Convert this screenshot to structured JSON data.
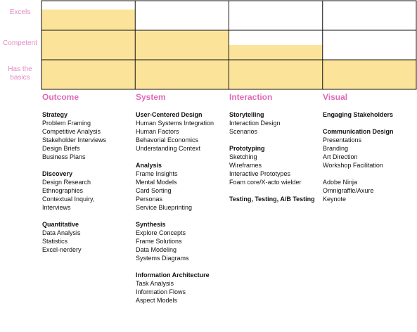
{
  "chart_data": {
    "type": "bar",
    "categories": [
      "Outcome",
      "System",
      "Interaction",
      "Visual"
    ],
    "levels": [
      "Has the basics",
      "Competent",
      "Excels"
    ],
    "values": [
      2.7,
      2.0,
      1.5,
      1.0
    ],
    "ylim": [
      0,
      3
    ],
    "grid": true,
    "bar_color": "#fbe49a",
    "grid_color": "#111111",
    "label_color": "#e58ac6",
    "title_color": "#e06bb9"
  },
  "y_labels": {
    "excels": "Excels",
    "competent": "Competent",
    "basics_line1": "Has the",
    "basics_line2": "basics"
  },
  "columns": [
    {
      "title": "Outcome",
      "groups": [
        {
          "title": "Strategy",
          "items": [
            "Problem Framing",
            "Competitive Analysis",
            "Stakeholder Interviews",
            "Design Briefs",
            "Business Plans"
          ]
        },
        {
          "title": "Discovery",
          "items": [
            "Design Research",
            "Ethnographies",
            "Contextual Inquiry,",
            "Interviews"
          ]
        },
        {
          "title": "Quantitative",
          "items": [
            "Data Analysis",
            "Statistics",
            "Excel-nerdery"
          ]
        }
      ]
    },
    {
      "title": "System",
      "groups": [
        {
          "title": "User-Centered Design",
          "items": [
            "Human Systems Integration",
            "Human Factors",
            "Behavorial Economics",
            "Understanding Context"
          ]
        },
        {
          "title": "Analysis",
          "items": [
            "Frame Insights",
            "Mental Models",
            "Card Sorting",
            "Personas",
            "Service Blueprinting"
          ]
        },
        {
          "title": "Synthesis",
          "items": [
            "Explore Concepts",
            "Frame Solutions",
            "Data Modeling",
            "Systems Diagrams"
          ]
        },
        {
          "title": "Information Architecture",
          "items": [
            "Task Analysis",
            "Information Flows",
            "Aspect Models"
          ]
        }
      ]
    },
    {
      "title": "Interaction",
      "groups": [
        {
          "title": "Storytelling",
          "items": [
            "Interaction Design",
            "Scenarios"
          ]
        },
        {
          "title": "Prototyping",
          "items": [
            "Sketching",
            "Wireframes",
            "Interactive Prototypes",
            "Foam core/X-acto wielder"
          ]
        },
        {
          "title": "Testing, Testing, A/B Testing",
          "items": []
        }
      ]
    },
    {
      "title": "Visual",
      "groups": [
        {
          "title": "Engaging Stakeholders",
          "items": []
        },
        {
          "title": "Communication Design",
          "items": [
            "Presentations",
            "Branding",
            "Art Direction",
            "Workshop Facilitation"
          ]
        },
        {
          "title": "",
          "items": [
            "Adobe Ninja",
            "Omnigraffle/Axure",
            "Keynote"
          ]
        }
      ]
    }
  ]
}
